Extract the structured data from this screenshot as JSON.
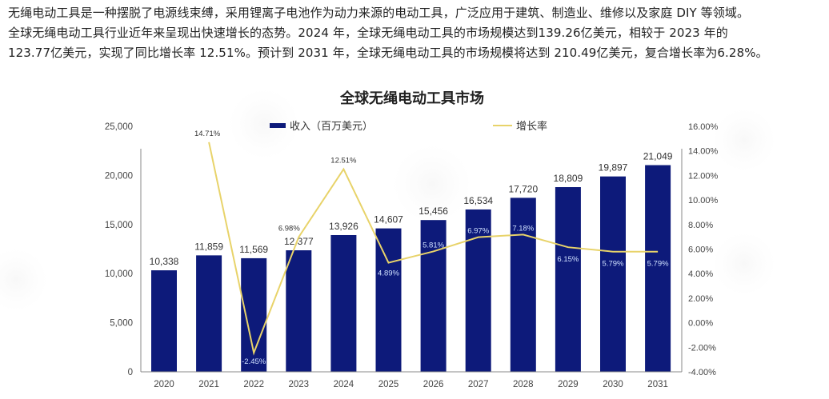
{
  "intro": {
    "lines": [
      "无绳电动工具是一种摆脱了电源线束缚，采用锂离子电池作为动力来源的电动工具，广泛应用于建筑、制造业、维修以及家庭 DIY 等领域。",
      "全球无绳电动工具行业近年来呈现出快速增长的态势。2024 年，全球无绳电动工具的市场规模达到139.26亿美元，相较于 2023 年的",
      "123.77亿美元，实现了同比增长率 12.51%。预计到 2031 年，全球无绳电动工具的市场规模将达到 210.49亿美元，复合增长率为6.28%。"
    ]
  },
  "colors": {
    "bar": "#0d1a7a",
    "line": "#e8d36a",
    "axis_text": "#444444",
    "inner_label": "#cfe0ff"
  },
  "chart_data": {
    "type": "bar",
    "title": "全球无绳电动工具市场",
    "categories": [
      "2020",
      "2021",
      "2022",
      "2023",
      "2024",
      "2025",
      "2026",
      "2027",
      "2028",
      "2029",
      "2030",
      "2031"
    ],
    "series": [
      {
        "name": "收入（百万美元）",
        "type": "bar",
        "axis": "left",
        "values": [
          10338,
          11859,
          11569,
          12377,
          13926,
          14607,
          15456,
          16534,
          17720,
          18809,
          19897,
          21049
        ],
        "labels": [
          "10,338",
          "11,859",
          "11,569",
          "12,377",
          "13,926",
          "14,607",
          "15,456",
          "16,534",
          "17,720",
          "18,809",
          "19,897",
          "21,049"
        ]
      },
      {
        "name": "增长率",
        "type": "line",
        "axis": "right",
        "x": [
          "2021",
          "2022",
          "2023",
          "2024",
          "2025",
          "2026",
          "2027",
          "2028",
          "2029",
          "2030",
          "2031"
        ],
        "values": [
          14.71,
          -2.45,
          6.98,
          12.51,
          4.89,
          5.81,
          6.97,
          7.18,
          6.15,
          5.79,
          5.79
        ],
        "labels": [
          "14.71%",
          "-2.45%",
          "6.98%",
          "12.51%",
          "4.89%",
          "5.81%",
          "6.97%",
          "7.18%",
          "6.15%",
          "5.79%",
          "5.79%"
        ]
      }
    ],
    "y_left": {
      "ylim": [
        0,
        25000
      ],
      "ticks": [
        "0",
        "5,000",
        "10,000",
        "15,000",
        "20,000",
        "25,000"
      ]
    },
    "y_right": {
      "ylim": [
        -4,
        16
      ],
      "ticks": [
        "-4.00%",
        "-2.00%",
        "0.00%",
        "2.00%",
        "4.00%",
        "6.00%",
        "8.00%",
        "10.00%",
        "12.00%",
        "14.00%",
        "16.00%"
      ]
    },
    "xlabel": "",
    "ylabel": "",
    "grid": false,
    "legend_position": "top"
  }
}
